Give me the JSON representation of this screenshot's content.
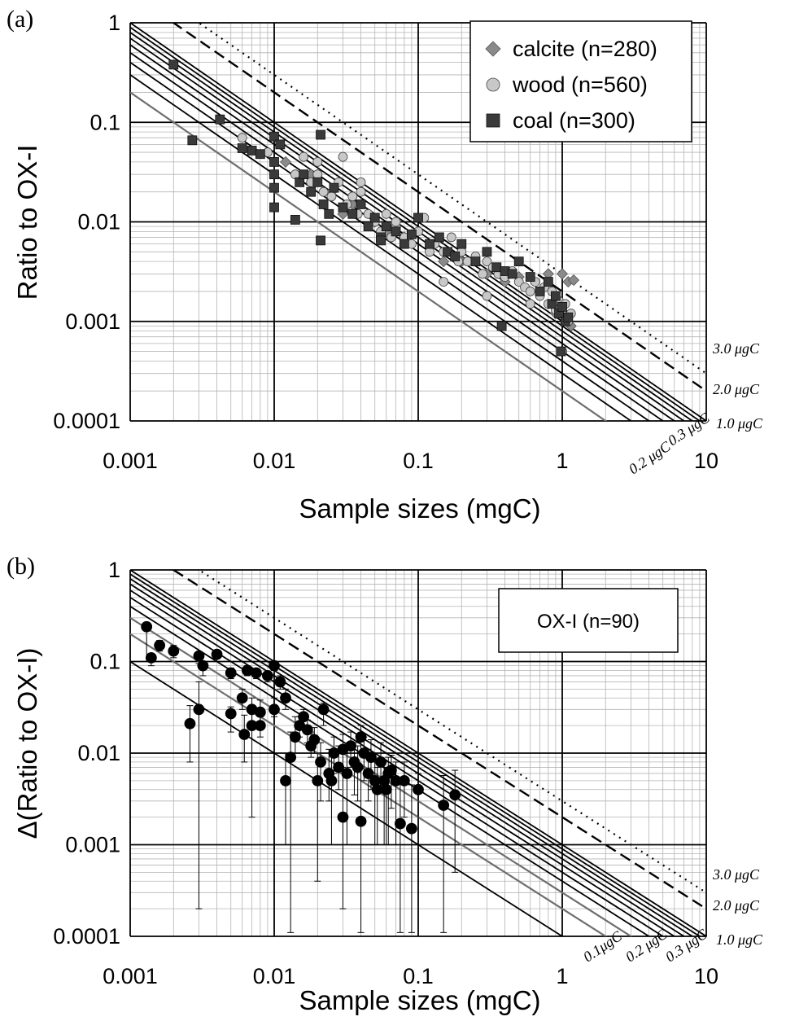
{
  "chart_data": [
    {
      "panel": "(a)",
      "type": "scatter",
      "xscale": "log",
      "yscale": "log",
      "xlim": [
        0.001,
        10
      ],
      "ylim": [
        0.0001,
        1
      ],
      "xticks": [
        "0.001",
        "0.01",
        "0.1",
        "1",
        "10"
      ],
      "yticks": [
        "1",
        "0.1",
        "0.01",
        "0.001",
        "0.0001"
      ],
      "xlabel": "Sample sizes (mgC)",
      "ylabel": "Ratio to OX-I",
      "grid": true,
      "legend_position": "top-right",
      "legend": [
        "calcite (n=280)",
        "wood (n=560)",
        "coal (n=300)"
      ],
      "reference_lines": {
        "formula": "ratio = contamination / sample size",
        "solid_black_ugC": [
          0.3,
          0.4,
          0.5,
          0.6,
          0.7,
          0.8,
          0.9,
          1.0
        ],
        "solid_gray_ugC": [
          0.2
        ],
        "dashed_ugC": [
          2.0
        ],
        "dotted_ugC": [
          3.0
        ],
        "labels": [
          "3.0 μgC",
          "2.0 μgC",
          "1.0 μgC",
          "0.3 μgC",
          "0.2 μgC"
        ]
      },
      "series": [
        {
          "name": "calcite (n=280)",
          "marker": "diamond",
          "color": "#8a8a8a",
          "x": [
            0.012,
            0.018,
            0.025,
            0.035,
            0.05,
            0.08,
            0.15,
            0.3,
            0.5,
            0.8,
            1.0,
            1.1,
            1.2,
            0.7,
            0.4,
            0.2,
            0.06,
            0.03,
            0.9,
            1.15
          ],
          "y": [
            0.04,
            0.03,
            0.02,
            0.015,
            0.01,
            0.007,
            0.004,
            0.003,
            0.0028,
            0.003,
            0.003,
            0.0025,
            0.0026,
            0.002,
            0.0025,
            0.004,
            0.008,
            0.012,
            0.0012,
            0.0009
          ]
        },
        {
          "name": "wood (n=560)",
          "marker": "circle",
          "color": "#c8c8c8",
          "x": [
            0.006,
            0.009,
            0.011,
            0.014,
            0.016,
            0.018,
            0.02,
            0.022,
            0.025,
            0.028,
            0.03,
            0.032,
            0.035,
            0.038,
            0.04,
            0.045,
            0.05,
            0.055,
            0.06,
            0.065,
            0.07,
            0.08,
            0.09,
            0.1,
            0.11,
            0.12,
            0.13,
            0.15,
            0.17,
            0.19,
            0.2,
            0.22,
            0.25,
            0.28,
            0.3,
            0.33,
            0.36,
            0.4,
            0.45,
            0.5,
            0.55,
            0.6,
            0.65,
            0.7,
            0.75,
            0.8,
            0.85,
            0.9,
            0.95,
            1.0,
            1.05,
            1.1,
            1.15,
            0.02,
            0.04,
            0.07,
            0.15,
            0.3,
            0.6,
            1.0
          ],
          "y": [
            0.07,
            0.05,
            0.06,
            0.03,
            0.045,
            0.025,
            0.03,
            0.02,
            0.018,
            0.025,
            0.045,
            0.015,
            0.018,
            0.012,
            0.02,
            0.012,
            0.01,
            0.008,
            0.012,
            0.007,
            0.009,
            0.007,
            0.006,
            0.008,
            0.011,
            0.005,
            0.006,
            0.005,
            0.007,
            0.004,
            0.005,
            0.004,
            0.0045,
            0.003,
            0.004,
            0.0035,
            0.003,
            0.0028,
            0.0032,
            0.0025,
            0.0022,
            0.002,
            0.0025,
            0.0018,
            0.0022,
            0.0015,
            0.002,
            0.0013,
            0.0016,
            0.0012,
            0.0015,
            0.001,
            0.0012,
            0.04,
            0.025,
            0.01,
            0.0025,
            0.0018,
            0.0015,
            0.0005
          ]
        },
        {
          "name": "coal (n=300)",
          "marker": "square",
          "color": "#3a3a3a",
          "x": [
            0.002,
            0.0027,
            0.0042,
            0.006,
            0.007,
            0.008,
            0.01,
            0.01,
            0.01,
            0.01,
            0.01,
            0.011,
            0.015,
            0.016,
            0.018,
            0.02,
            0.021,
            0.022,
            0.024,
            0.026,
            0.03,
            0.035,
            0.04,
            0.045,
            0.05,
            0.055,
            0.06,
            0.07,
            0.08,
            0.09,
            0.1,
            0.12,
            0.14,
            0.16,
            0.18,
            0.2,
            0.25,
            0.3,
            0.35,
            0.4,
            0.45,
            0.5,
            0.6,
            0.7,
            0.8,
            0.85,
            0.9,
            0.95,
            1.0,
            1.05,
            1.1,
            0.014,
            0.021,
            0.055,
            0.38,
            0.98
          ],
          "y": [
            0.38,
            0.066,
            0.107,
            0.055,
            0.052,
            0.048,
            0.072,
            0.04,
            0.03,
            0.022,
            0.014,
            0.06,
            0.025,
            0.03,
            0.02,
            0.025,
            0.075,
            0.015,
            0.012,
            0.022,
            0.014,
            0.012,
            0.015,
            0.009,
            0.011,
            0.007,
            0.009,
            0.008,
            0.006,
            0.0075,
            0.011,
            0.006,
            0.007,
            0.005,
            0.0045,
            0.006,
            0.004,
            0.005,
            0.0035,
            0.0032,
            0.003,
            0.004,
            0.0028,
            0.002,
            0.0025,
            0.0015,
            0.0018,
            0.0012,
            0.0014,
            0.001,
            0.0011,
            0.0105,
            0.0065,
            0.0065,
            0.0009,
            0.0005
          ]
        }
      ]
    },
    {
      "panel": "(b)",
      "type": "scatter",
      "xscale": "log",
      "yscale": "log",
      "xlim": [
        0.001,
        10
      ],
      "ylim": [
        0.0001,
        1
      ],
      "xticks": [
        "0.001",
        "0.01",
        "0.1",
        "1",
        "10"
      ],
      "yticks": [
        "1",
        "0.1",
        "0.01",
        "0.001",
        "0.0001"
      ],
      "xlabel": "Sample sizes (mgC)",
      "ylabel": "Δ(Ratio to OX-I)",
      "grid": true,
      "legend_position": "top-right",
      "legend": [
        "OX-I (n=90)"
      ],
      "reference_lines": {
        "formula": "ratio = contamination / sample size",
        "solid_black_ugC": [
          0.1,
          0.4,
          0.5,
          0.6,
          0.7,
          0.8,
          0.9,
          1.0
        ],
        "solid_gray_ugC": [
          0.2,
          0.3
        ],
        "dashed_ugC": [
          2.0
        ],
        "dotted_ugC": [
          3.0
        ],
        "labels": [
          "3.0 μgC",
          "2.0 μgC",
          "1.0 μgC",
          "0.3 μgC",
          "0.2 μgC",
          "0.1μgC"
        ]
      },
      "series": [
        {
          "name": "OX-I (n=90)",
          "marker": "circle",
          "color": "#000000",
          "x": [
            0.0013,
            0.0014,
            0.0016,
            0.002,
            0.0026,
            0.003,
            0.003,
            0.0032,
            0.004,
            0.005,
            0.005,
            0.006,
            0.0062,
            0.0065,
            0.007,
            0.007,
            0.0075,
            0.008,
            0.008,
            0.009,
            0.01,
            0.01,
            0.011,
            0.012,
            0.012,
            0.013,
            0.014,
            0.015,
            0.016,
            0.017,
            0.018,
            0.019,
            0.02,
            0.021,
            0.022,
            0.024,
            0.025,
            0.026,
            0.028,
            0.03,
            0.03,
            0.032,
            0.034,
            0.036,
            0.038,
            0.04,
            0.04,
            0.042,
            0.045,
            0.047,
            0.05,
            0.052,
            0.055,
            0.058,
            0.06,
            0.062,
            0.065,
            0.07,
            0.075,
            0.08,
            0.09,
            0.1,
            0.15,
            0.18
          ],
          "y": [
            0.24,
            0.11,
            0.15,
            0.13,
            0.021,
            0.03,
            0.115,
            0.09,
            0.12,
            0.075,
            0.027,
            0.04,
            0.016,
            0.08,
            0.03,
            0.02,
            0.075,
            0.02,
            0.028,
            0.07,
            0.09,
            0.03,
            0.06,
            0.005,
            0.04,
            0.009,
            0.015,
            0.02,
            0.025,
            0.018,
            0.012,
            0.014,
            0.005,
            0.008,
            0.03,
            0.006,
            0.005,
            0.01,
            0.007,
            0.002,
            0.011,
            0.006,
            0.012,
            0.008,
            0.007,
            0.0018,
            0.015,
            0.01,
            0.006,
            0.009,
            0.005,
            0.004,
            0.008,
            0.005,
            0.004,
            0.006,
            0.0065,
            0.005,
            0.0017,
            0.005,
            0.0015,
            0.004,
            0.0027,
            0.0035
          ],
          "err_lo": [
            0.14,
            0.02,
            0.02,
            0.02,
            0.013,
            0.0298,
            0.02,
            0.02,
            0.02,
            0.01,
            0.01,
            0.01,
            0.008,
            0.01,
            0.008,
            0.018,
            0.01,
            0.005,
            0.01,
            0.01,
            0.01,
            0.005,
            0.01,
            0.004,
            0.01,
            0.0089,
            0.005,
            0.005,
            0.005,
            0.005,
            0.003,
            0.004,
            0.0046,
            0.005,
            0.01,
            0.003,
            0.004,
            0.004,
            0.003,
            0.0018,
            0.005,
            0.005,
            0.005,
            0.0045,
            0.004,
            0.0017,
            0.005,
            0.005,
            0.003,
            0.005,
            0.004,
            0.003,
            0.004,
            0.004,
            0.003,
            0.005,
            0.004,
            0.004,
            0.0016,
            0.003,
            0.0014,
            0.003,
            0.0026,
            0.003
          ],
          "err_hi": [
            0.02,
            0.01,
            0.02,
            0.02,
            0.012,
            0.03,
            0.01,
            0.01,
            0.01,
            0.01,
            0.005,
            0.01,
            0.01,
            0.01,
            0.01,
            0.01,
            0.005,
            0.005,
            0.01,
            0.005,
            0.01,
            0.01,
            0.01,
            0.005,
            0.01,
            0.008,
            0.01,
            0.005,
            0.005,
            0.005,
            0.005,
            0.005,
            0.005,
            0.005,
            0.005,
            0.005,
            0.005,
            0.005,
            0.005,
            0.005,
            0.005,
            0.005,
            0.005,
            0.005,
            0.005,
            0.005,
            0.005,
            0.005,
            0.005,
            0.005,
            0.005,
            0.003,
            0.005,
            0.003,
            0.003,
            0.003,
            0.003,
            0.003,
            0.003,
            0.003,
            0.003,
            0.002,
            0.003,
            0.003
          ]
        }
      ]
    }
  ]
}
